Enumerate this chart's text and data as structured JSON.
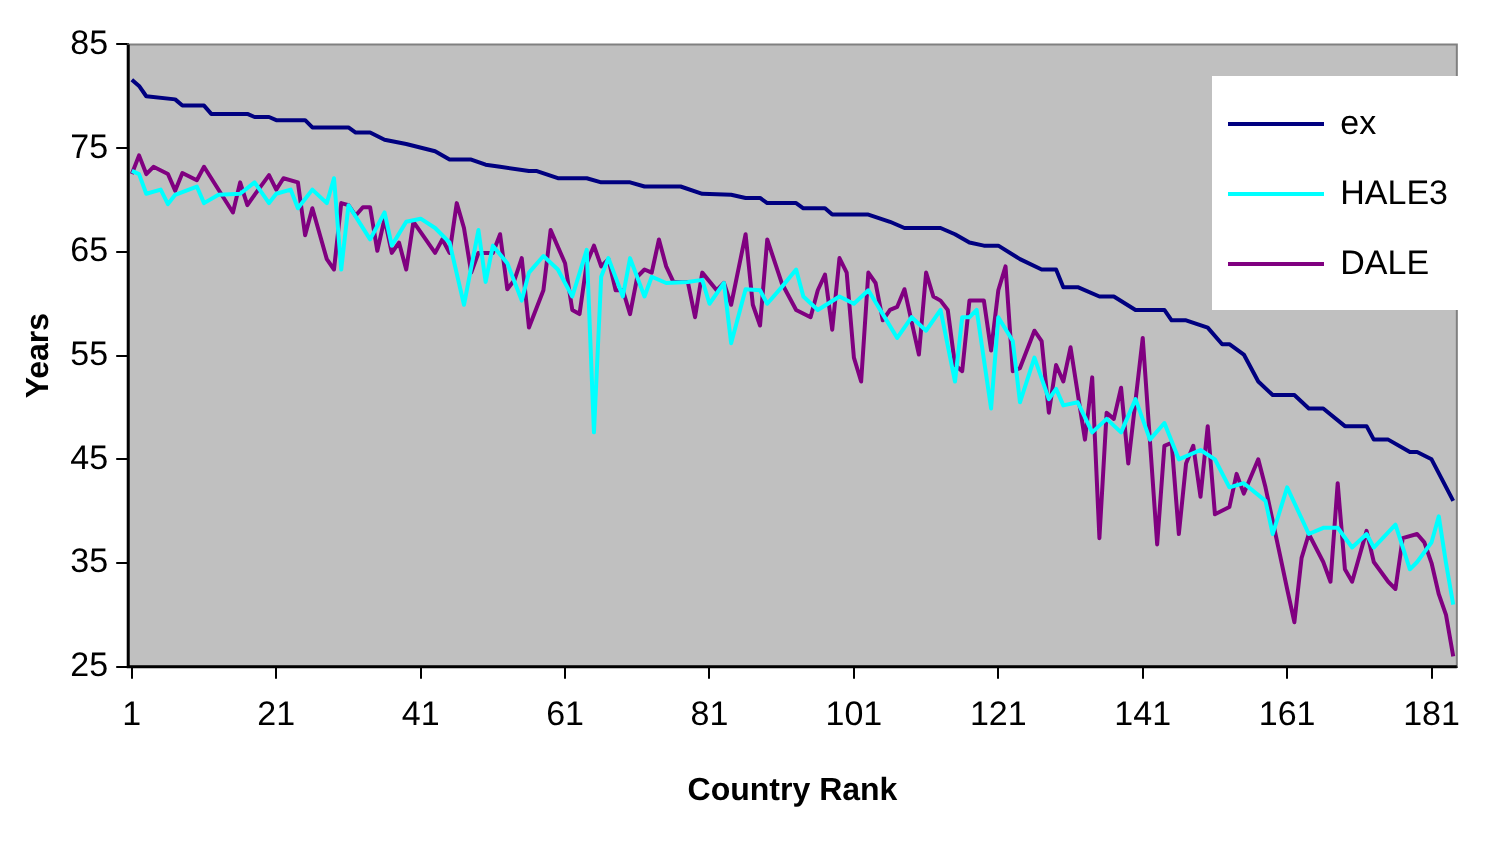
{
  "chart_data": {
    "type": "line",
    "xlabel": "Country Rank",
    "ylabel": "Years",
    "xlim": [
      0.5,
      184.5
    ],
    "xticks": [
      1,
      21,
      41,
      61,
      81,
      101,
      121,
      141,
      161,
      181
    ],
    "ylim": [
      25,
      85
    ],
    "yticks": [
      25,
      35,
      45,
      55,
      65,
      75,
      85
    ],
    "grid": false,
    "legend": "top right",
    "marker": "none",
    "line_style": "solid",
    "series": [
      {
        "name": "ex",
        "color": "#000080",
        "x": [
          1,
          2,
          3,
          7,
          8,
          11,
          12,
          17,
          18,
          20,
          21,
          25,
          26,
          31,
          32,
          34,
          36,
          39,
          43,
          45,
          48,
          50,
          52,
          56,
          57,
          60,
          64,
          66,
          70,
          72,
          77,
          80,
          84,
          86,
          88,
          89,
          93,
          94,
          97,
          98,
          103,
          106,
          108,
          113,
          115,
          117,
          119,
          121,
          124,
          127,
          129,
          130,
          132,
          135,
          137,
          140,
          144,
          145,
          147,
          150,
          152,
          153,
          155,
          157,
          159,
          162,
          164,
          166,
          169,
          172,
          173,
          175,
          178,
          179,
          181,
          184
        ],
        "values": [
          81.6,
          81,
          80,
          79.7,
          79.1,
          79.1,
          78.3,
          78.3,
          78,
          78,
          77.7,
          77.7,
          77,
          77,
          76.5,
          76.5,
          75.8,
          75.4,
          74.7,
          73.9,
          73.9,
          73.4,
          73.2,
          72.8,
          72.8,
          72.1,
          72.1,
          71.7,
          71.7,
          71.3,
          71.3,
          70.6,
          70.5,
          70.2,
          70.2,
          69.7,
          69.7,
          69.2,
          69.2,
          68.6,
          68.6,
          67.9,
          67.3,
          67.3,
          66.7,
          65.9,
          65.6,
          65.6,
          64.3,
          63.3,
          63.3,
          61.6,
          61.6,
          60.7,
          60.7,
          59.4,
          59.4,
          58.4,
          58.4,
          57.7,
          56.1,
          56.1,
          55.1,
          52.5,
          51.2,
          51.2,
          49.9,
          49.9,
          48.2,
          48.2,
          46.9,
          46.9,
          45.7,
          45.7,
          45,
          41
        ]
      },
      {
        "name": "HALE3",
        "color": "#00ffff",
        "x": [
          1,
          2,
          3,
          5,
          6,
          7,
          10,
          11,
          13,
          16,
          18,
          20,
          21,
          23,
          24,
          26,
          28,
          29,
          30,
          31,
          34,
          36,
          37,
          39,
          41,
          43,
          44,
          45,
          47,
          49,
          50,
          51,
          53,
          55,
          56,
          58,
          60,
          62,
          64,
          65,
          66,
          67,
          69,
          70,
          72,
          73,
          75,
          78,
          80,
          81,
          83,
          84,
          86,
          88,
          89,
          91,
          93,
          94,
          96,
          99,
          101,
          103,
          105,
          107,
          109,
          111,
          113,
          115,
          116,
          117,
          118,
          120,
          121,
          123,
          124,
          126,
          128,
          129,
          130,
          132,
          134,
          136,
          138,
          140,
          142,
          144,
          146,
          149,
          151,
          153,
          155,
          158,
          159,
          161,
          164,
          166,
          168,
          170,
          172,
          173,
          176,
          178,
          179,
          181,
          182,
          183,
          184
        ],
        "values": [
          72.8,
          72.5,
          70.6,
          71,
          69.6,
          70.5,
          71.3,
          69.7,
          70.5,
          70.6,
          71.7,
          69.7,
          70.6,
          71,
          69.2,
          71,
          69.7,
          72.1,
          63.3,
          69.5,
          66.2,
          68.8,
          65.6,
          67.9,
          68.2,
          67.3,
          66.6,
          65.9,
          59.9,
          67.1,
          62.1,
          65.6,
          63.9,
          60.3,
          63,
          64.6,
          63.3,
          60.7,
          65.2,
          47.6,
          62.6,
          64.4,
          60.7,
          64.4,
          60.7,
          62.6,
          62,
          62.1,
          62.3,
          60,
          62,
          56.2,
          61.4,
          61.3,
          60,
          61.6,
          63.3,
          60.7,
          59.4,
          60.7,
          60,
          61.3,
          59,
          56.7,
          58.7,
          57.4,
          59.4,
          52.5,
          58.7,
          58.7,
          59.4,
          49.9,
          58.7,
          56.4,
          50.5,
          54.8,
          50.8,
          51.8,
          50.2,
          50.5,
          47.6,
          48.9,
          47.6,
          50.8,
          46.9,
          48.5,
          45,
          45.9,
          45,
          42.3,
          42.7,
          41,
          37.8,
          42.3,
          37.8,
          38.4,
          38.4,
          36.5,
          37.8,
          36.5,
          38.7,
          34.4,
          35.1,
          37,
          39.5,
          35,
          31
        ]
      },
      {
        "name": "DALE",
        "color": "#800080",
        "x": [
          1,
          2,
          3,
          4,
          6,
          7,
          8,
          10,
          11,
          15,
          16,
          17,
          18,
          20,
          21,
          22,
          24,
          25,
          26,
          28,
          29,
          30,
          31,
          32,
          33,
          34,
          35,
          36,
          37,
          38,
          39,
          40,
          41,
          43,
          44,
          45,
          46,
          47,
          48,
          49,
          51,
          52,
          53,
          54,
          55,
          56,
          58,
          59,
          61,
          62,
          63,
          64,
          65,
          66,
          67,
          68,
          69,
          70,
          71,
          72,
          73,
          74,
          75,
          76,
          77,
          78,
          79,
          80,
          82,
          83,
          84,
          86,
          87,
          88,
          89,
          91,
          93,
          95,
          96,
          97,
          98,
          99,
          100,
          101,
          102,
          103,
          104,
          105,
          106,
          107,
          108,
          110,
          111,
          112,
          113,
          114,
          115,
          116,
          117,
          119,
          120,
          121,
          122,
          123,
          124,
          126,
          127,
          128,
          129,
          130,
          131,
          133,
          134,
          135,
          136,
          137,
          138,
          139,
          141,
          143,
          144,
          145,
          146,
          147,
          148,
          149,
          150,
          151,
          153,
          154,
          155,
          157,
          158,
          160,
          161,
          162,
          163,
          164,
          166,
          167,
          168,
          169,
          170,
          172,
          173,
          175,
          176,
          177,
          179,
          180,
          181,
          182,
          183,
          184
        ],
        "values": [
          72.5,
          74.3,
          72.5,
          73.2,
          72.5,
          70.9,
          72.6,
          71.9,
          73.2,
          68.8,
          71.7,
          69.5,
          70.5,
          72.4,
          71,
          72.1,
          71.7,
          66.6,
          69.2,
          64.3,
          63.3,
          69.7,
          69.5,
          68.5,
          69.3,
          69.3,
          65.1,
          68.2,
          64.9,
          65.9,
          63.3,
          67.9,
          66.9,
          64.9,
          66.2,
          64.9,
          69.7,
          67.3,
          63,
          64.9,
          64.9,
          66.7,
          61.4,
          62.3,
          64.4,
          57.7,
          61.3,
          67.1,
          63.9,
          59.4,
          59,
          63.9,
          65.6,
          63.6,
          64.3,
          61.3,
          61.3,
          59,
          62.6,
          63.3,
          63,
          66.2,
          63.6,
          62.1,
          62.1,
          62.1,
          58.7,
          63,
          61.3,
          62,
          59.9,
          66.7,
          59.9,
          57.9,
          66.2,
          62,
          59.4,
          58.7,
          61.3,
          62.8,
          57.5,
          64.4,
          63,
          54.8,
          52.5,
          63,
          62,
          58.4,
          59.4,
          59.7,
          61.4,
          55.1,
          63,
          60.7,
          60.3,
          59.4,
          54.1,
          53.5,
          60.3,
          60.3,
          55.5,
          61.3,
          63.6,
          53.5,
          53.8,
          57.4,
          56.4,
          49.5,
          54.1,
          52.5,
          55.8,
          46.9,
          52.9,
          37.4,
          49.5,
          48.9,
          51.9,
          44.6,
          56.7,
          36.8,
          46.3,
          46.6,
          37.8,
          44.6,
          46.3,
          41.4,
          48.2,
          39.7,
          40.4,
          43.6,
          41.7,
          45,
          42.3,
          35.8,
          32.5,
          29.3,
          35.5,
          37.8,
          35.1,
          33.2,
          42.7,
          34.4,
          33.2,
          38.1,
          35.1,
          33.2,
          32.5,
          37.4,
          37.8,
          37,
          35,
          32,
          30,
          26
        ]
      }
    ]
  }
}
